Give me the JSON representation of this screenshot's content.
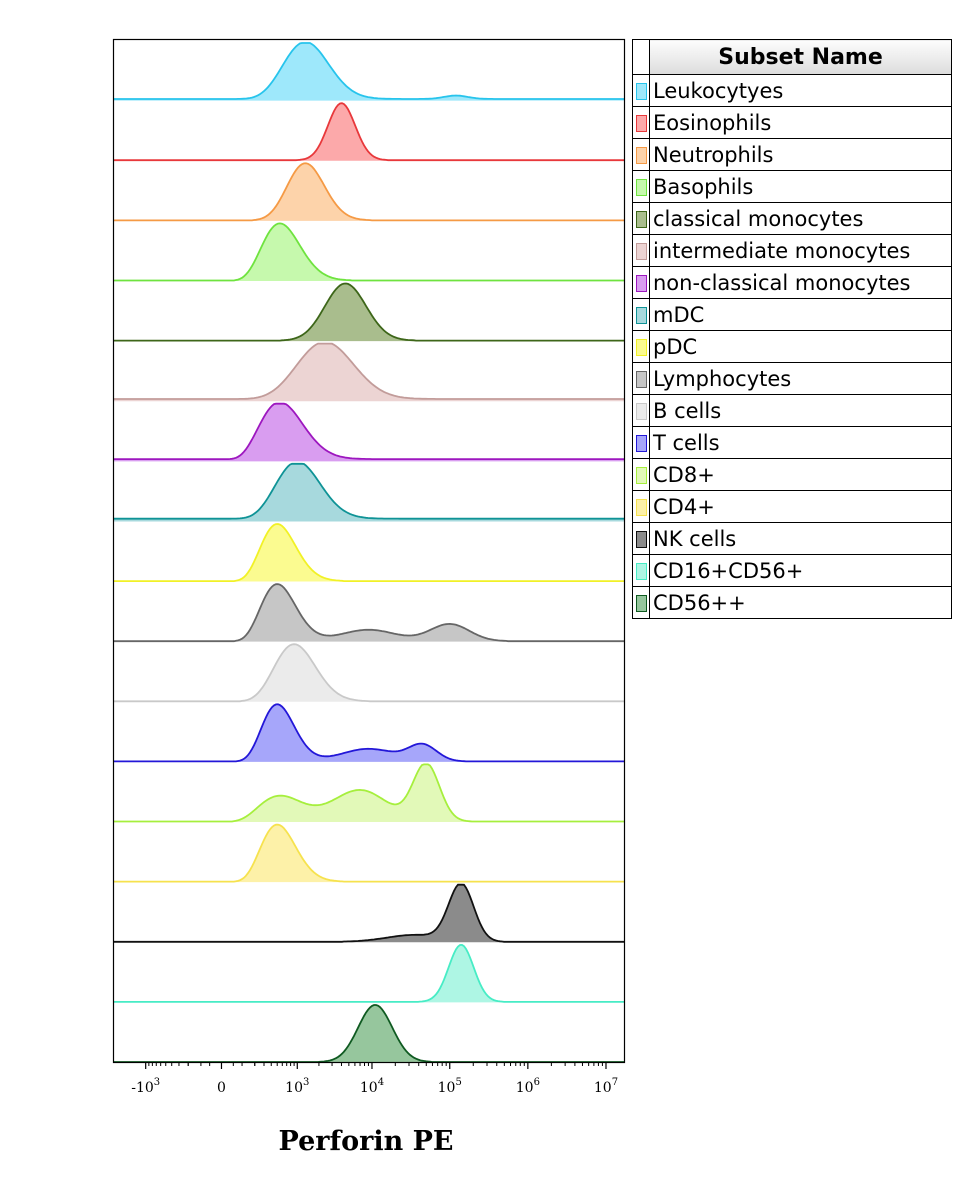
{
  "legend": {
    "header": "Subset Name"
  },
  "chart_data": {
    "type": "histogram-overlay-stacked",
    "xlabel": "Perforin PE",
    "x_scale": "biexponential",
    "x_ticks": [
      {
        "value": -1000,
        "base": "-10",
        "exp": "3"
      },
      {
        "value": 0,
        "base": "0",
        "exp": ""
      },
      {
        "value": 1000,
        "base": "10",
        "exp": "3"
      },
      {
        "value": 10000,
        "base": "10",
        "exp": "4"
      },
      {
        "value": 100000,
        "base": "10",
        "exp": "5"
      },
      {
        "value": 1000000,
        "base": "10",
        "exp": "6"
      },
      {
        "value": 10000000,
        "base": "10",
        "exp": "7"
      }
    ],
    "series": [
      {
        "name": "Leukocytyes",
        "color": "#27c4ec",
        "fill": "#9ee8fb",
        "peaks": [
          [
            1300,
            1.0,
            0.32
          ],
          [
            120000,
            0.06,
            0.15
          ]
        ],
        "baseline": 0.02
      },
      {
        "name": "Eosinophils",
        "color": "#e8383b",
        "fill": "#fca9aa",
        "peaks": [
          [
            4000,
            1.0,
            0.18
          ]
        ],
        "baseline": 0
      },
      {
        "name": "Neutrophils",
        "color": "#f59a45",
        "fill": "#fdd3aa",
        "peaks": [
          [
            1300,
            1.0,
            0.26
          ]
        ],
        "baseline": 0
      },
      {
        "name": "Basophils",
        "color": "#6fe33f",
        "fill": "#c6f9ad",
        "peaks": [
          [
            550,
            1.0,
            0.3
          ]
        ],
        "baseline": 0
      },
      {
        "name": "classical monocytes",
        "color": "#3d6619",
        "fill": "#a9bd8d",
        "peaks": [
          [
            4500,
            1.0,
            0.27
          ]
        ],
        "baseline": 0
      },
      {
        "name": "intermediate monocytes",
        "color": "#c29c9a",
        "fill": "#ecd4d3",
        "peaks": [
          [
            2400,
            1.0,
            0.38
          ]
        ],
        "baseline": 0.03
      },
      {
        "name": "non-classical monocytes",
        "color": "#9d17bf",
        "fill": "#d99df0",
        "peaks": [
          [
            550,
            1.0,
            0.34
          ]
        ],
        "baseline": 0.03
      },
      {
        "name": "mDC",
        "color": "#0f9396",
        "fill": "#a7d9dd",
        "peaks": [
          [
            1000,
            1.0,
            0.32
          ]
        ],
        "baseline": 0.04
      },
      {
        "name": "pDC",
        "color": "#f1f126",
        "fill": "#fbfb90",
        "peaks": [
          [
            500,
            1.0,
            0.28
          ]
        ],
        "baseline": 0
      },
      {
        "name": "Lymphocytes",
        "color": "#666666",
        "fill": "#c6c6c6",
        "peaks": [
          [
            500,
            1.0,
            0.28
          ],
          [
            9000,
            0.2,
            0.35
          ],
          [
            100000,
            0.3,
            0.25
          ]
        ],
        "baseline": 0
      },
      {
        "name": "B cells",
        "color": "#c9c9c9",
        "fill": "#ebebeb",
        "peaks": [
          [
            900,
            1.0,
            0.3
          ]
        ],
        "baseline": 0
      },
      {
        "name": "T cells",
        "color": "#2317d8",
        "fill": "#a6a6fa",
        "peaks": [
          [
            500,
            1.0,
            0.26
          ],
          [
            9000,
            0.22,
            0.35
          ],
          [
            45000,
            0.28,
            0.18
          ]
        ],
        "baseline": 0
      },
      {
        "name": "CD8+",
        "color": "#a6ef3d",
        "fill": "#e2f9b8",
        "peaks": [
          [
            550,
            0.45,
            0.35
          ],
          [
            7000,
            0.55,
            0.35
          ],
          [
            50000,
            1.0,
            0.17
          ]
        ],
        "baseline": 0
      },
      {
        "name": "CD4+",
        "color": "#f6e24e",
        "fill": "#fdf1a8",
        "peaks": [
          [
            500,
            1.0,
            0.28
          ]
        ],
        "baseline": 0
      },
      {
        "name": "NK cells",
        "color": "#111111",
        "fill": "#8b8b8b",
        "peaks": [
          [
            140000,
            1.0,
            0.16
          ],
          [
            35000,
            0.12,
            0.35
          ]
        ],
        "baseline": 0
      },
      {
        "name": "CD16+CD56+",
        "color": "#47ecc5",
        "fill": "#aef6e4",
        "peaks": [
          [
            140000,
            1.0,
            0.16
          ]
        ],
        "baseline": 0
      },
      {
        "name": "CD56++",
        "color": "#0f5a21",
        "fill": "#96c69d",
        "peaks": [
          [
            11000,
            1.0,
            0.22
          ]
        ],
        "baseline": 0
      }
    ]
  }
}
